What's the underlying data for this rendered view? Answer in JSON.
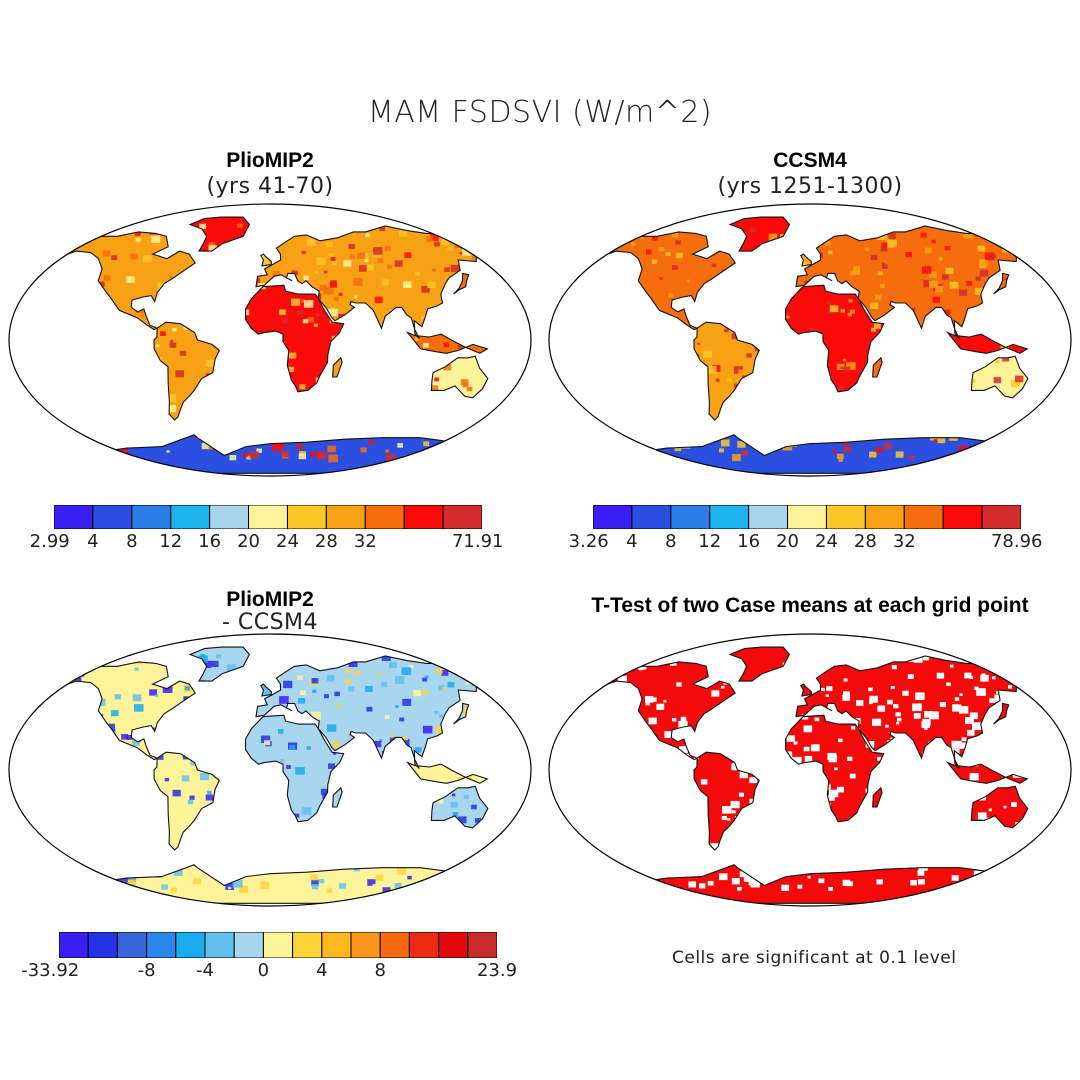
{
  "title": "MAM FSDSVI (W/m^2)",
  "panels": {
    "tl": {
      "title": "PlioMIP2",
      "subtitle": "(yrs 41-70)"
    },
    "tr": {
      "title": "CCSM4",
      "subtitle": "(yrs 1251-1300)"
    },
    "bl": {
      "title": "PlioMIP2",
      "subtitle": "- CCSM4"
    },
    "br": {
      "title": "T-Test of two Case means at each grid point"
    }
  },
  "colorbars": {
    "tl": {
      "colors": [
        "#3a1ff5",
        "#2b4fe0",
        "#2a7ee8",
        "#1cb4ef",
        "#a8d6ee",
        "#fdf49a",
        "#fcc728",
        "#f9a115",
        "#f56d0d",
        "#fb0a0a",
        "#d42c2c"
      ],
      "labels": [
        "2.99",
        "4",
        "8",
        "12",
        "16",
        "20",
        "24",
        "28",
        "32",
        "71.91"
      ]
    },
    "tr": {
      "colors": [
        "#3a1ff5",
        "#2b4fe0",
        "#2a7ee8",
        "#1cb4ef",
        "#a8d6ee",
        "#fdf49a",
        "#fcc728",
        "#f9a115",
        "#f56d0d",
        "#fb0a0a",
        "#d42c2c"
      ],
      "labels": [
        "3.26",
        "4",
        "8",
        "12",
        "16",
        "20",
        "24",
        "28",
        "32",
        "78.96"
      ]
    },
    "bl": {
      "colors": [
        "#3a1ff5",
        "#2433e8",
        "#3766dc",
        "#2a86ea",
        "#1aaaf0",
        "#63c0ee",
        "#a8d6ee",
        "#fdf49a",
        "#fcd43a",
        "#fcb61e",
        "#f9951a",
        "#f6690e",
        "#ed2a12",
        "#e00808",
        "#c92b2b"
      ],
      "labels": [
        "-33.92",
        "-8",
        "-4",
        "0",
        "4",
        "8",
        "23.9"
      ]
    }
  },
  "note": "Cells are significant at 0.1 level"
}
